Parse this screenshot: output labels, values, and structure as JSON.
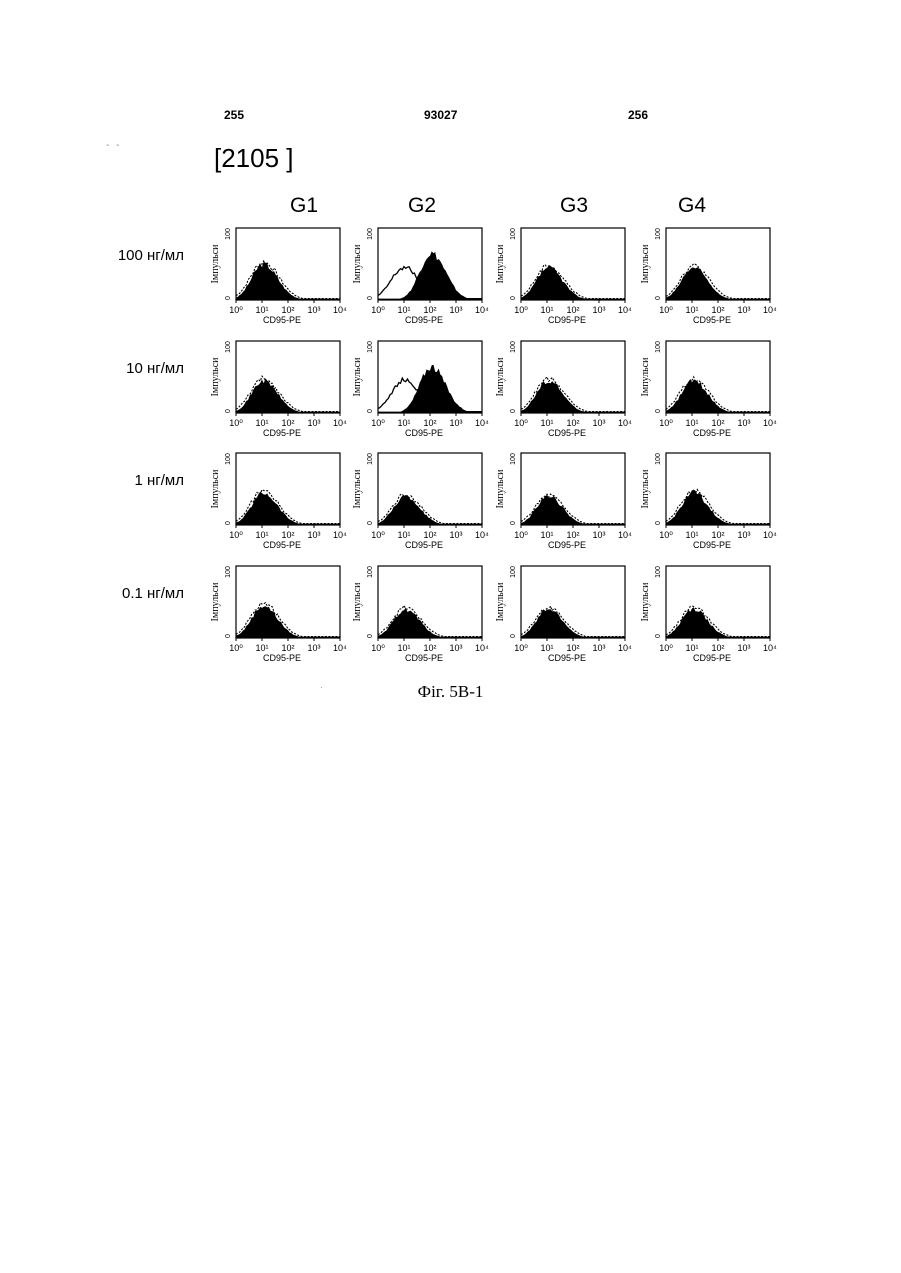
{
  "header": {
    "left": "255",
    "center": "93027",
    "right": "256"
  },
  "margin_mark": "- -",
  "reference": "[2105 ]",
  "caption": "Фіг. 5В-1",
  "chart_data": {
    "type": "histogram-grid",
    "columns": [
      "G1",
      "G2",
      "G3",
      "G4"
    ],
    "rows": [
      "100 нг/мл",
      "10 нг/мл",
      "1 нг/мл",
      "0.1 нг/мл"
    ],
    "xlabel": "CD95-PE",
    "ylabel": "Імпульси",
    "x_scale": "log",
    "xlim": [
      1,
      10000
    ],
    "x_ticks": [
      "10⁰",
      "10¹",
      "10²",
      "10³",
      "10⁴"
    ],
    "y_ticks": [
      "0",
      "100"
    ],
    "series_style": {
      "filled": "#000000",
      "open": "#000000"
    },
    "panels": [
      {
        "row": 0,
        "col": 0,
        "filled_peak_log": 1.05,
        "open_peak_log": 1.05,
        "peak_height": 0.5
      },
      {
        "row": 0,
        "col": 1,
        "filled_peak_log": 2.05,
        "open_peak_log": 1.0,
        "peak_height": 0.65,
        "open_height": 0.45
      },
      {
        "row": 0,
        "col": 2,
        "filled_peak_log": 1.05,
        "open_peak_log": 1.05,
        "peak_height": 0.45
      },
      {
        "row": 0,
        "col": 3,
        "filled_peak_log": 1.05,
        "open_peak_log": 1.05,
        "peak_height": 0.45
      },
      {
        "row": 1,
        "col": 0,
        "filled_peak_log": 1.05,
        "open_peak_log": 1.05,
        "peak_height": 0.45
      },
      {
        "row": 1,
        "col": 1,
        "filled_peak_log": 2.05,
        "open_peak_log": 1.0,
        "peak_height": 0.65,
        "open_height": 0.45
      },
      {
        "row": 1,
        "col": 2,
        "filled_peak_log": 1.05,
        "open_peak_log": 1.05,
        "peak_height": 0.45
      },
      {
        "row": 1,
        "col": 3,
        "filled_peak_log": 1.05,
        "open_peak_log": 1.05,
        "peak_height": 0.45
      },
      {
        "row": 2,
        "col": 0,
        "filled_peak_log": 1.05,
        "open_peak_log": 1.05,
        "peak_height": 0.45
      },
      {
        "row": 2,
        "col": 1,
        "filled_peak_log": 1.05,
        "open_peak_log": 1.05,
        "peak_height": 0.4
      },
      {
        "row": 2,
        "col": 2,
        "filled_peak_log": 1.05,
        "open_peak_log": 1.05,
        "peak_height": 0.4
      },
      {
        "row": 2,
        "col": 3,
        "filled_peak_log": 1.05,
        "open_peak_log": 1.05,
        "peak_height": 0.45
      },
      {
        "row": 3,
        "col": 0,
        "filled_peak_log": 1.05,
        "open_peak_log": 1.05,
        "peak_height": 0.45
      },
      {
        "row": 3,
        "col": 1,
        "filled_peak_log": 1.05,
        "open_peak_log": 1.05,
        "peak_height": 0.4
      },
      {
        "row": 3,
        "col": 2,
        "filled_peak_log": 1.05,
        "open_peak_log": 1.05,
        "peak_height": 0.4
      },
      {
        "row": 3,
        "col": 3,
        "filled_peak_log": 1.05,
        "open_peak_log": 1.05,
        "peak_height": 0.4
      }
    ]
  }
}
